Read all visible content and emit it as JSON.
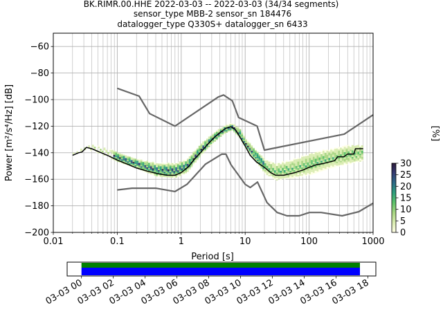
{
  "chart_data": {
    "type": "line",
    "title_lines": [
      "BK.RIMR.00.HHE   2022-03-03 -- 2022-03-03  (34/34 segments)",
      "sensor_type MBB-2 sensor_sn 184476",
      "datalogger_type Q330S+ datalogger_sn 6433"
    ],
    "xlabel": "Period [s]",
    "ylabel": "Power [m²/s⁴/Hz] [dB]",
    "xscale": "log",
    "xlim": [
      0.01,
      1000
    ],
    "ylim": [
      -200,
      -50
    ],
    "x_ticks": [
      {
        "v": 0.01,
        "label": "0.01"
      },
      {
        "v": 0.1,
        "label": "0.1"
      },
      {
        "v": 1,
        "label": "1"
      },
      {
        "v": 10,
        "label": "10"
      },
      {
        "v": 100,
        "label": "100"
      },
      {
        "v": 1000,
        "label": "1000"
      }
    ],
    "y_ticks": [
      {
        "v": -60,
        "label": "−60"
      },
      {
        "v": -80,
        "label": "−80"
      },
      {
        "v": -100,
        "label": "−100"
      },
      {
        "v": -120,
        "label": "−120"
      },
      {
        "v": -140,
        "label": "−140"
      },
      {
        "v": -160,
        "label": "−160"
      },
      {
        "v": -180,
        "label": "−180"
      },
      {
        "v": -200,
        "label": "−200"
      }
    ],
    "grid": true,
    "series": [
      {
        "role": "noise-model-high",
        "color": "#666666",
        "points": [
          [
            0.1,
            -91.5
          ],
          [
            0.22,
            -97.4
          ],
          [
            0.32,
            -110.5
          ],
          [
            0.8,
            -120
          ],
          [
            3.8,
            -98
          ],
          [
            4.6,
            -96.5
          ],
          [
            6.3,
            -101
          ],
          [
            7.9,
            -113.5
          ],
          [
            15.4,
            -120
          ],
          [
            20,
            -138
          ],
          [
            354,
            -126
          ],
          [
            1000,
            -111.5
          ]
        ]
      },
      {
        "role": "noise-model-low",
        "color": "#666666",
        "points": [
          [
            0.1,
            -168
          ],
          [
            0.17,
            -166.7
          ],
          [
            0.4,
            -166.7
          ],
          [
            0.8,
            -169.2
          ],
          [
            1.24,
            -163.7
          ],
          [
            2.4,
            -148.6
          ],
          [
            4.3,
            -141.1
          ],
          [
            5,
            -141.1
          ],
          [
            6,
            -149
          ],
          [
            10,
            -163.8
          ],
          [
            12,
            -166.2
          ],
          [
            15.6,
            -162.1
          ],
          [
            21.9,
            -177.5
          ],
          [
            31.6,
            -185
          ],
          [
            45,
            -187.5
          ],
          [
            70,
            -187.5
          ],
          [
            101,
            -185
          ],
          [
            154,
            -185
          ],
          [
            328,
            -187.5
          ],
          [
            600,
            -184.4
          ],
          [
            1000,
            -178
          ]
        ]
      },
      {
        "role": "mode",
        "color": "#000000",
        "points": [
          [
            0.02,
            -142
          ],
          [
            0.025,
            -140
          ],
          [
            0.028,
            -139.5
          ],
          [
            0.033,
            -136
          ],
          [
            0.04,
            -137
          ],
          [
            0.05,
            -139
          ],
          [
            0.07,
            -142
          ],
          [
            0.1,
            -145.5
          ],
          [
            0.15,
            -149
          ],
          [
            0.2,
            -151.5
          ],
          [
            0.3,
            -154
          ],
          [
            0.45,
            -156
          ],
          [
            0.6,
            -157
          ],
          [
            0.8,
            -157
          ],
          [
            1,
            -155
          ],
          [
            1.3,
            -150.5
          ],
          [
            1.6,
            -145
          ],
          [
            2,
            -140
          ],
          [
            2.5,
            -134.5
          ],
          [
            3.2,
            -129
          ],
          [
            4,
            -125
          ],
          [
            5,
            -121.5
          ],
          [
            6,
            -120.5
          ],
          [
            7,
            -122.5
          ],
          [
            8,
            -127
          ],
          [
            10,
            -135
          ],
          [
            12,
            -142
          ],
          [
            15,
            -147
          ],
          [
            20,
            -151
          ],
          [
            25,
            -155
          ],
          [
            30,
            -157
          ],
          [
            40,
            -157
          ],
          [
            60,
            -155
          ],
          [
            80,
            -153
          ],
          [
            100,
            -151
          ],
          [
            130,
            -149
          ],
          [
            170,
            -148
          ],
          [
            250,
            -146
          ],
          [
            280,
            -143
          ],
          [
            350,
            -143
          ],
          [
            400,
            -141
          ],
          [
            500,
            -141
          ],
          [
            530,
            -137
          ],
          [
            700,
            -137
          ]
        ]
      }
    ],
    "psd_density_band": [
      [
        0.02,
        -141,
        -142
      ],
      [
        0.03,
        -136,
        -139
      ],
      [
        0.04,
        -134,
        -140
      ],
      [
        0.06,
        -136,
        -143
      ],
      [
        0.1,
        -140,
        -148
      ],
      [
        0.2,
        -145,
        -153
      ],
      [
        0.4,
        -148,
        -159
      ],
      [
        0.8,
        -148,
        -160
      ],
      [
        1.2,
        -145,
        -156
      ],
      [
        2,
        -133,
        -143
      ],
      [
        3,
        -126,
        -134
      ],
      [
        4.5,
        -120,
        -127
      ],
      [
        6,
        -118,
        -124
      ],
      [
        8,
        -122,
        -130
      ],
      [
        10,
        -130,
        -138
      ],
      [
        15,
        -139,
        -149
      ],
      [
        20,
        -145,
        -157
      ],
      [
        30,
        -148,
        -162
      ],
      [
        60,
        -144,
        -160
      ],
      [
        100,
        -140,
        -158
      ],
      [
        200,
        -137,
        -153
      ],
      [
        400,
        -134,
        -150
      ],
      [
        700,
        -134,
        -147
      ]
    ],
    "colorbar": {
      "label": "[%]",
      "range": [
        0,
        30
      ],
      "ticks": [
        {
          "v": 0,
          "label": "0"
        },
        {
          "v": 5,
          "label": "5"
        },
        {
          "v": 10,
          "label": "10"
        },
        {
          "v": 15,
          "label": "15"
        },
        {
          "v": 20,
          "label": "20"
        },
        {
          "v": 25,
          "label": "25"
        },
        {
          "v": 30,
          "label": "30"
        }
      ],
      "colors": [
        "#ffffe6",
        "#d9ecb0",
        "#a8d682",
        "#5ec26a",
        "#2e9f7c",
        "#2c6b87",
        "#343b73",
        "#2d1a3a"
      ]
    },
    "timeline": {
      "tick_labels": [
        "03-03 00",
        "03-03 02",
        "03-03 04",
        "03-03 06",
        "03-03 08",
        "03-03 10",
        "03-03 12",
        "03-03 14",
        "03-03 16",
        "03-03 18"
      ],
      "tick_hours": [
        0,
        2,
        4,
        6,
        8,
        10,
        12,
        14,
        16,
        18
      ],
      "range_hours": [
        -0.9,
        18.5
      ],
      "bars": [
        {
          "role": "data",
          "color": "#008000",
          "start_h": 0,
          "end_h": 17.5
        },
        {
          "role": "segments",
          "color": "#0000ff",
          "start_h": 0,
          "end_h": 17.5
        }
      ]
    }
  }
}
